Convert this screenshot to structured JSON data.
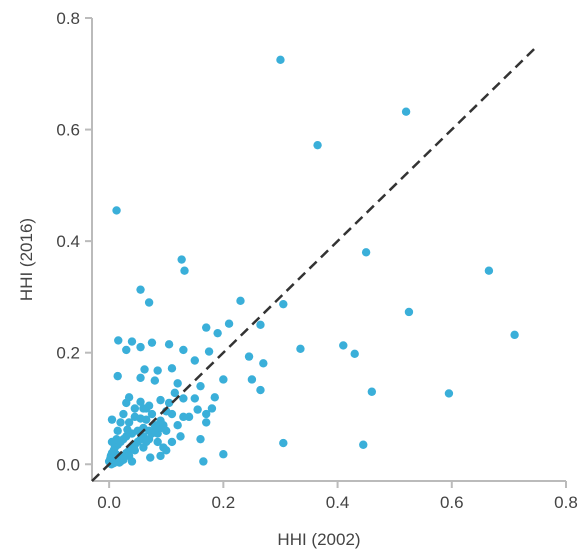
{
  "chart_data": {
    "type": "scatter",
    "title": "",
    "xlabel": "HHI (2002)",
    "ylabel": "HHI (2016)",
    "xlim": [
      -0.03,
      0.8
    ],
    "ylim": [
      -0.03,
      0.8
    ],
    "xticks": [
      "0.0",
      "0.2",
      "0.4",
      "0.6",
      "0.8"
    ],
    "yticks": [
      "0.0",
      "0.2",
      "0.4",
      "0.6",
      "0.8"
    ],
    "tick_values": [
      0.0,
      0.2,
      0.4,
      0.6,
      0.8
    ],
    "grid": false,
    "point_color": "#3aafd9",
    "reference_line": {
      "style": "dashed",
      "color": "#333333",
      "from": [
        -0.03,
        -0.03
      ],
      "to": [
        0.75,
        0.75
      ]
    },
    "series": [
      {
        "points": [
          [
            0.3,
            0.725
          ],
          [
            0.52,
            0.632
          ],
          [
            0.365,
            0.572
          ],
          [
            0.013,
            0.455
          ],
          [
            0.45,
            0.38
          ],
          [
            0.127,
            0.367
          ],
          [
            0.132,
            0.347
          ],
          [
            0.665,
            0.347
          ],
          [
            0.055,
            0.313
          ],
          [
            0.07,
            0.29
          ],
          [
            0.23,
            0.293
          ],
          [
            0.305,
            0.287
          ],
          [
            0.525,
            0.273
          ],
          [
            0.71,
            0.232
          ],
          [
            0.265,
            0.25
          ],
          [
            0.21,
            0.252
          ],
          [
            0.17,
            0.245
          ],
          [
            0.19,
            0.235
          ],
          [
            0.016,
            0.222
          ],
          [
            0.04,
            0.22
          ],
          [
            0.075,
            0.218
          ],
          [
            0.105,
            0.215
          ],
          [
            0.055,
            0.21
          ],
          [
            0.03,
            0.205
          ],
          [
            0.13,
            0.205
          ],
          [
            0.175,
            0.202
          ],
          [
            0.335,
            0.207
          ],
          [
            0.41,
            0.213
          ],
          [
            0.43,
            0.198
          ],
          [
            0.245,
            0.193
          ],
          [
            0.27,
            0.181
          ],
          [
            0.15,
            0.186
          ],
          [
            0.062,
            0.17
          ],
          [
            0.085,
            0.168
          ],
          [
            0.11,
            0.172
          ],
          [
            0.015,
            0.158
          ],
          [
            0.055,
            0.155
          ],
          [
            0.08,
            0.15
          ],
          [
            0.2,
            0.152
          ],
          [
            0.25,
            0.152
          ],
          [
            0.12,
            0.145
          ],
          [
            0.16,
            0.14
          ],
          [
            0.46,
            0.13
          ],
          [
            0.595,
            0.127
          ],
          [
            0.265,
            0.133
          ],
          [
            0.185,
            0.12
          ],
          [
            0.035,
            0.12
          ],
          [
            0.03,
            0.11
          ],
          [
            0.055,
            0.112
          ],
          [
            0.065,
            0.1
          ],
          [
            0.09,
            0.115
          ],
          [
            0.13,
            0.118
          ],
          [
            0.15,
            0.118
          ],
          [
            0.075,
            0.09
          ],
          [
            0.1,
            0.095
          ],
          [
            0.005,
            0.08
          ],
          [
            0.045,
            0.085
          ],
          [
            0.055,
            0.082
          ],
          [
            0.065,
            0.08
          ],
          [
            0.035,
            0.075
          ],
          [
            0.09,
            0.078
          ],
          [
            0.12,
            0.07
          ],
          [
            0.14,
            0.085
          ],
          [
            0.17,
            0.09
          ],
          [
            0.18,
            0.1
          ],
          [
            0.155,
            0.098
          ],
          [
            0.1,
            0.06
          ],
          [
            0.085,
            0.055
          ],
          [
            0.07,
            0.06
          ],
          [
            0.06,
            0.065
          ],
          [
            0.05,
            0.06
          ],
          [
            0.04,
            0.055
          ],
          [
            0.03,
            0.05
          ],
          [
            0.025,
            0.045
          ],
          [
            0.02,
            0.04
          ],
          [
            0.015,
            0.035
          ],
          [
            0.01,
            0.03
          ],
          [
            0.008,
            0.025
          ],
          [
            0.005,
            0.02
          ],
          [
            0.003,
            0.015
          ],
          [
            0.002,
            0.01
          ],
          [
            0.0,
            0.005
          ],
          [
            0.004,
            0.0
          ],
          [
            0.01,
            0.005
          ],
          [
            0.015,
            0.01
          ],
          [
            0.02,
            0.005
          ],
          [
            0.025,
            0.015
          ],
          [
            0.03,
            0.02
          ],
          [
            0.035,
            0.025
          ],
          [
            0.04,
            0.03
          ],
          [
            0.045,
            0.035
          ],
          [
            0.05,
            0.04
          ],
          [
            0.055,
            0.045
          ],
          [
            0.06,
            0.05
          ],
          [
            0.065,
            0.04
          ],
          [
            0.07,
            0.045
          ],
          [
            0.075,
            0.055
          ],
          [
            0.08,
            0.06
          ],
          [
            0.09,
            0.065
          ],
          [
            0.095,
            0.07
          ],
          [
            0.11,
            0.04
          ],
          [
            0.125,
            0.05
          ],
          [
            0.06,
            0.03
          ],
          [
            0.045,
            0.025
          ],
          [
            0.035,
            0.015
          ],
          [
            0.025,
            0.008
          ],
          [
            0.018,
            0.003
          ],
          [
            0.012,
            0.018
          ],
          [
            0.008,
            0.012
          ],
          [
            0.06,
            0.1
          ],
          [
            0.07,
            0.105
          ],
          [
            0.08,
            0.07
          ],
          [
            0.085,
            0.04
          ],
          [
            0.095,
            0.03
          ],
          [
            0.16,
            0.045
          ],
          [
            0.165,
            0.005
          ],
          [
            0.2,
            0.018
          ],
          [
            0.17,
            0.075
          ],
          [
            0.09,
            0.015
          ],
          [
            0.305,
            0.038
          ],
          [
            0.445,
            0.035
          ],
          [
            0.11,
            0.09
          ],
          [
            0.045,
            0.1
          ],
          [
            0.025,
            0.09
          ],
          [
            0.015,
            0.06
          ],
          [
            0.005,
            0.04
          ],
          [
            0.02,
            0.075
          ],
          [
            0.1,
            0.025
          ],
          [
            0.13,
            0.085
          ],
          [
            0.105,
            0.11
          ],
          [
            0.115,
            0.128
          ],
          [
            0.04,
            0.005
          ],
          [
            0.008,
            0.002
          ],
          [
            0.013,
            0.045
          ],
          [
            0.032,
            0.062
          ],
          [
            0.072,
            0.012
          ]
        ]
      }
    ]
  }
}
